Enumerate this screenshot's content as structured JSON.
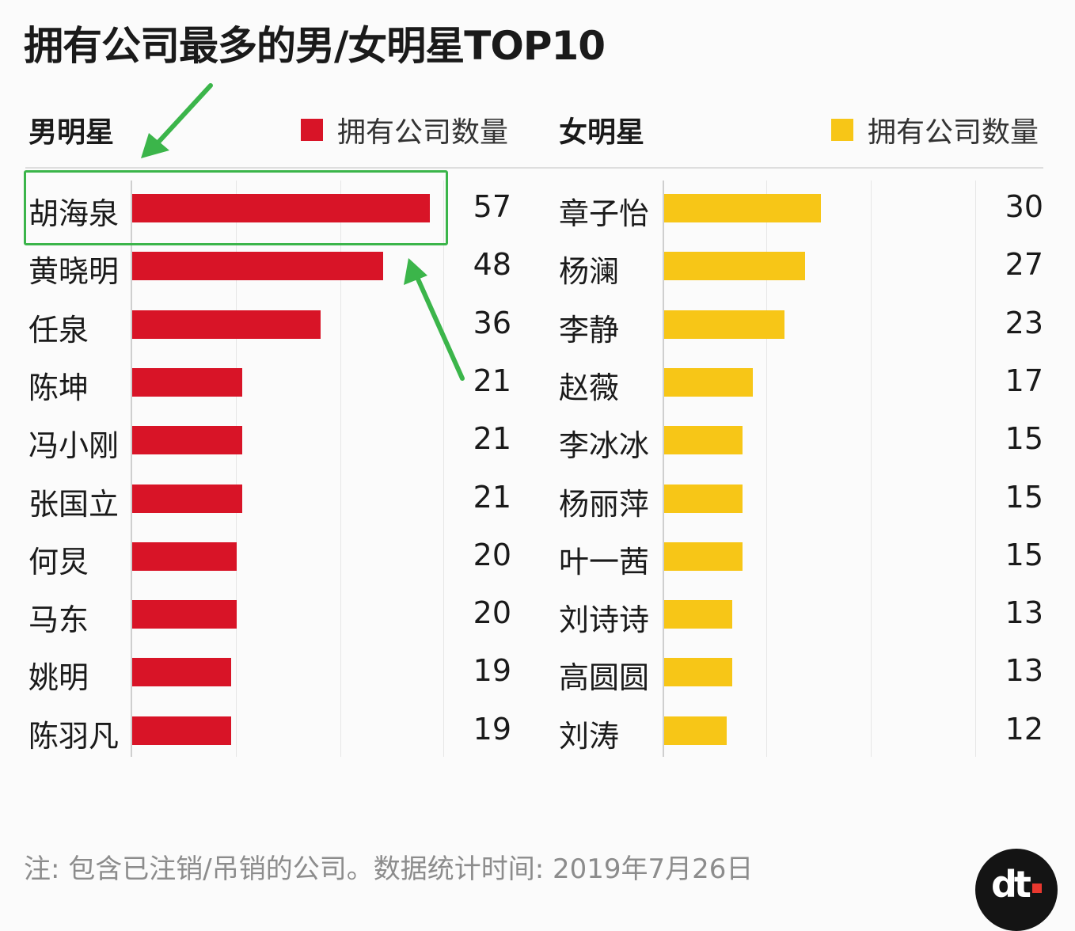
{
  "title": "拥有公司最多的男/女明星TOP10",
  "colors": {
    "male": "#d81427",
    "female": "#f7c617",
    "highlight": "#3bb54a"
  },
  "chart_data": [
    {
      "type": "bar",
      "orientation": "horizontal",
      "group_label": "男明星",
      "legend": "拥有公司数量",
      "categories": [
        "胡海泉",
        "黄晓明",
        "任泉",
        "陈坤",
        "冯小刚",
        "张国立",
        "何炅",
        "马东",
        "姚明",
        "陈羽凡"
      ],
      "values": [
        57,
        48,
        36,
        21,
        21,
        21,
        20,
        20,
        19,
        19
      ],
      "xlim": [
        0,
        60
      ]
    },
    {
      "type": "bar",
      "orientation": "horizontal",
      "group_label": "女明星",
      "legend": "拥有公司数量",
      "categories": [
        "章子怡",
        "杨澜",
        "李静",
        "赵薇",
        "李冰冰",
        "杨丽萍",
        "叶一茜",
        "刘诗诗",
        "高圆圆",
        "刘涛"
      ],
      "values": [
        30,
        27,
        23,
        17,
        15,
        15,
        15,
        13,
        13,
        12
      ],
      "xlim": [
        0,
        60
      ]
    }
  ],
  "note": "注: 包含已注销/吊销的公司。数据统计时间: 2019年7月26日",
  "logo": "dt"
}
